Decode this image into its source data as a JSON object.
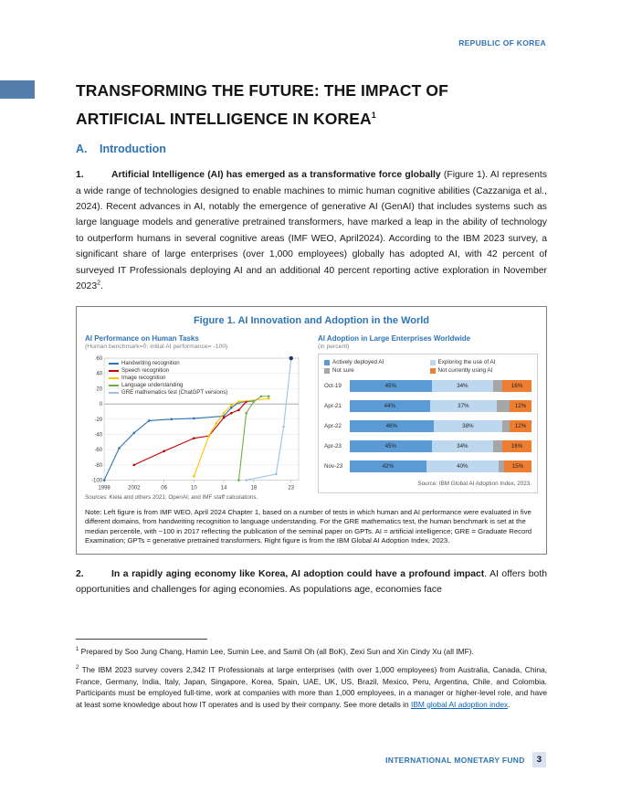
{
  "page": {
    "header_label": "REPUBLIC OF KOREA",
    "footer_label": "INTERNATIONAL MONETARY FUND",
    "page_number": "3"
  },
  "title": {
    "line1": "TRANSFORMING THE FUTURE: THE IMPACT OF",
    "line2": "ARTIFICIAL INTELLIGENCE IN KOREA",
    "footnote_marker": "1"
  },
  "section": {
    "letter": "A.",
    "label": "Introduction"
  },
  "para1": {
    "number": "1.",
    "bold": "Artificial Intelligence (AI) has emerged as a transformative force globally",
    "rest": " (Figure 1). AI represents a wide range of technologies designed to enable machines to mimic human cognitive abilities (Cazzaniga et al., 2024). Recent advances in AI, notably the emergence of generative AI (GenAI) that includes systems such as large language models and generative pretrained transformers, have marked a leap in the ability of technology to outperform humans in several cognitive areas (IMF WEO, April2024). According to the IBM 2023 survey, a significant share of large enterprises (over 1,000 employees) globally has adopted AI, with 42 percent of surveyed IT Professionals deploying AI and an additional 40 percent reporting active exploration in November 2023",
    "sup": "2",
    "tail": "."
  },
  "figure": {
    "title": "Figure 1. AI Innovation and Adoption in the World",
    "note": "Note: Left figure is from IMF WEO, April 2024 Chapter 1, based on a number of tests in which human and AI performance were evaluated in five different domains, from handwriting recognition to language understanding. For the GRE mathematics test, the human benchmark is set at the median percentile, with −100 in 2017 reflecting the publication of the seminal paper on GPTs. AI = artificial intelligence; GRE = Graduate Record Examination; GPTs = generative pretrained transformers. Right figure is from the IBM Global AI Adoption Index, 2023."
  },
  "para2": {
    "number": "2.",
    "bold": "In a rapidly aging economy like Korea, AI adoption could have a profound impact",
    "rest": ". AI offers both opportunities and challenges for aging economies. As populations age, economies face"
  },
  "footnotes": {
    "fn1": {
      "marker": "1",
      "text": " Prepared by Soo Jung Chang, Hamin Lee, Sumin Lee, and Samil Oh (all BoK), Zexi Sun and Xin Cindy Xu (all IMF)."
    },
    "fn2": {
      "marker": "2",
      "text": " The IBM 2023 survey covers 2,342 IT Professionals at large enterprises (with over 1,000 employees) from Australia, Canada, China, France, Germany, India, Italy, Japan, Singapore, Korea, Spain, UAE, UK, US, Brazil, Mexico, Peru, Argentina, Chile, and Colombia. Participants must be employed full-time, work at companies with more than 1,000 employees, in a manager or higher-level role, and have at least some knowledge about how IT operates and is used by their company. See more details in ",
      "link": "IBM global AI adoption index",
      "tail": "."
    }
  },
  "chart_data": [
    {
      "type": "line",
      "title": "AI Performance on Human Tasks",
      "subtitle": "(Human benchmark=0; initial AI performance= -100)",
      "xlim": [
        1998,
        2024
      ],
      "ylim": [
        -100,
        60
      ],
      "yticks": [
        60,
        40,
        20,
        0,
        -20,
        -40,
        -60,
        -80,
        -100
      ],
      "xticks": [
        {
          "v": 1998,
          "label": "1998"
        },
        {
          "v": 2002,
          "label": "2002"
        },
        {
          "v": 2006,
          "label": "06"
        },
        {
          "v": 2010,
          "label": "10"
        },
        {
          "v": 2014,
          "label": "14"
        },
        {
          "v": 2018,
          "label": "18"
        },
        {
          "v": 2023,
          "label": "23"
        }
      ],
      "series": [
        {
          "name": "Handwriting recognition",
          "color": "#2e75b6",
          "points": [
            [
              1998,
              -100
            ],
            [
              2000,
              -58
            ],
            [
              2002,
              -38
            ],
            [
              2004,
              -22
            ],
            [
              2007,
              -20
            ],
            [
              2010,
              -19
            ],
            [
              2014,
              -16
            ],
            [
              2015,
              -5
            ],
            [
              2016,
              2
            ],
            [
              2018,
              4
            ]
          ]
        },
        {
          "name": "Speech recognition",
          "color": "#c00000",
          "points": [
            [
              2002,
              -80
            ],
            [
              2006,
              -62
            ],
            [
              2010,
              -45
            ],
            [
              2012,
              -42
            ],
            [
              2014,
              -18
            ],
            [
              2015,
              -12
            ],
            [
              2016,
              -8
            ],
            [
              2017,
              3
            ]
          ]
        },
        {
          "name": "Image recognition",
          "color": "#ffc000",
          "points": [
            [
              2010,
              -95
            ],
            [
              2012,
              -42
            ],
            [
              2013,
              -25
            ],
            [
              2014,
              -12
            ],
            [
              2015,
              -2
            ],
            [
              2016,
              3
            ],
            [
              2020,
              7
            ]
          ]
        },
        {
          "name": "Language understanding",
          "color": "#70ad47",
          "points": [
            [
              2016,
              -100
            ],
            [
              2017,
              -12
            ],
            [
              2018,
              3
            ],
            [
              2019,
              10
            ],
            [
              2020,
              10
            ]
          ]
        },
        {
          "name": "GRE mathematics test (ChatGPT versions)",
          "color": "#9dc3e6",
          "end_dot_color": "#1f3864",
          "points": [
            [
              2017,
              -100
            ],
            [
              2021,
              -92
            ],
            [
              2022,
              -30
            ],
            [
              2023,
              60
            ]
          ]
        }
      ],
      "source": "Sources: Kiela and others 2021; OpenAI; and IMF staff calculations."
    },
    {
      "type": "bar",
      "title": "AI Adoption in Large Enterprises Worldwide",
      "subtitle": "(in percent)",
      "legend": [
        "Actively deployed AI",
        "Exploring the use of AI",
        "Not sure",
        "Not currently using AI"
      ],
      "colors": [
        "#5b9bd5",
        "#bdd7ee",
        "#a6a6a6",
        "#ed7d31"
      ],
      "categories": [
        "Oct-19",
        "Apr-21",
        "Apr-22",
        "Apr-23",
        "Nov-23"
      ],
      "series": [
        {
          "name": "Actively deployed AI",
          "values": [
            45,
            44,
            46,
            45,
            42
          ]
        },
        {
          "name": "Exploring the use of AI",
          "values": [
            34,
            37,
            38,
            34,
            40
          ]
        },
        {
          "name": "Not sure",
          "values": [
            5,
            7,
            4,
            5,
            3
          ]
        },
        {
          "name": "Not currently using AI",
          "values": [
            16,
            12,
            12,
            16,
            15
          ]
        }
      ],
      "labels": [
        [
          "45%",
          "34%",
          "16%"
        ],
        [
          "44%",
          "37%",
          "12%"
        ],
        [
          "46%",
          "38%",
          "12%"
        ],
        [
          "45%",
          "34%",
          "16%"
        ],
        [
          "42%",
          "40%",
          "15%"
        ]
      ],
      "source": "Source: IBM Global AI Adoption Index, 2023."
    }
  ]
}
